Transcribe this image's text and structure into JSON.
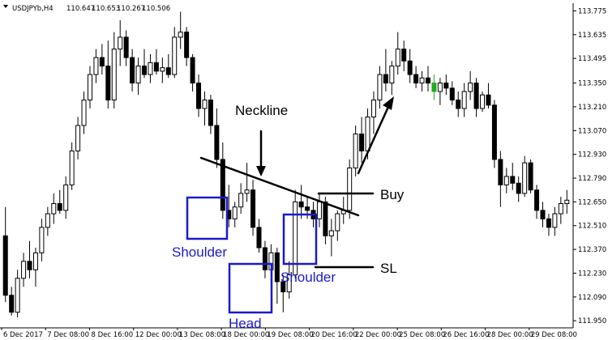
{
  "chart_data": {
    "type": "candlestick",
    "header": {
      "symbol": "USDJPYb,H4",
      "ohlc": [
        "110.647",
        "110.653",
        "110.267",
        "110.506"
      ]
    },
    "ylim": [
      111.908,
      113.82
    ],
    "y_ticks": [
      "113.775",
      "113.635",
      "113.495",
      "113.350",
      "113.210",
      "113.070",
      "112.930",
      "112.790",
      "112.650",
      "112.510",
      "112.370",
      "112.230",
      "112.090",
      "111.950"
    ],
    "x_ticks": [
      "6 Dec 2017",
      "7 Dec 08:00",
      "8 Dec 16:00",
      "12 Dec 00:00",
      "13 Dec 08:00",
      "18 Dec 00:00",
      "19 Dec 08:00",
      "20 Dec 16:00",
      "22 Dec 00:00",
      "25 Dec 08:00",
      "26 Dec 16:00",
      "28 Dec 00:00",
      "29 Dec 08:00"
    ],
    "colors": {
      "bull_body": "#ffffff",
      "bear_body": "#000000",
      "wick": "#000000",
      "highlight": "#22aa22",
      "pattern_box": "#1a1acc",
      "annotation": "#000000"
    },
    "candles": [
      {
        "o": 112.45,
        "h": 112.62,
        "l": 112.06,
        "c": 112.1
      },
      {
        "o": 112.1,
        "h": 112.15,
        "l": 111.98,
        "c": 112.0
      },
      {
        "o": 112.0,
        "h": 112.25,
        "l": 111.97,
        "c": 112.2
      },
      {
        "o": 112.2,
        "h": 112.35,
        "l": 112.15,
        "c": 112.3
      },
      {
        "o": 112.3,
        "h": 112.42,
        "l": 112.2,
        "c": 112.25
      },
      {
        "o": 112.25,
        "h": 112.38,
        "l": 112.15,
        "c": 112.35
      },
      {
        "o": 112.35,
        "h": 112.55,
        "l": 112.3,
        "c": 112.5
      },
      {
        "o": 112.5,
        "h": 112.62,
        "l": 112.45,
        "c": 112.58
      },
      {
        "o": 112.58,
        "h": 112.7,
        "l": 112.52,
        "c": 112.64
      },
      {
        "o": 112.64,
        "h": 112.72,
        "l": 112.58,
        "c": 112.6
      },
      {
        "o": 112.6,
        "h": 112.8,
        "l": 112.55,
        "c": 112.75
      },
      {
        "o": 112.75,
        "h": 113.0,
        "l": 112.72,
        "c": 112.95
      },
      {
        "o": 112.95,
        "h": 113.15,
        "l": 112.9,
        "c": 113.1
      },
      {
        "o": 113.1,
        "h": 113.3,
        "l": 113.05,
        "c": 113.25
      },
      {
        "o": 113.25,
        "h": 113.45,
        "l": 113.2,
        "c": 113.4
      },
      {
        "o": 113.4,
        "h": 113.55,
        "l": 113.35,
        "c": 113.5
      },
      {
        "o": 113.5,
        "h": 113.58,
        "l": 113.4,
        "c": 113.45
      },
      {
        "o": 113.45,
        "h": 113.6,
        "l": 113.2,
        "c": 113.25
      },
      {
        "o": 113.25,
        "h": 113.65,
        "l": 113.2,
        "c": 113.55
      },
      {
        "o": 113.55,
        "h": 113.72,
        "l": 113.45,
        "c": 113.62
      },
      {
        "o": 113.62,
        "h": 113.66,
        "l": 113.45,
        "c": 113.5
      },
      {
        "o": 113.5,
        "h": 113.55,
        "l": 113.3,
        "c": 113.35
      },
      {
        "o": 113.35,
        "h": 113.5,
        "l": 113.28,
        "c": 113.45
      },
      {
        "o": 113.45,
        "h": 113.55,
        "l": 113.38,
        "c": 113.4
      },
      {
        "o": 113.4,
        "h": 113.52,
        "l": 113.35,
        "c": 113.47
      },
      {
        "o": 113.47,
        "h": 113.55,
        "l": 113.4,
        "c": 113.42
      },
      {
        "o": 113.42,
        "h": 113.5,
        "l": 113.35,
        "c": 113.44
      },
      {
        "o": 113.44,
        "h": 113.52,
        "l": 113.38,
        "c": 113.4
      },
      {
        "o": 113.4,
        "h": 113.68,
        "l": 113.38,
        "c": 113.62
      },
      {
        "o": 113.62,
        "h": 113.77,
        "l": 113.55,
        "c": 113.65
      },
      {
        "o": 113.65,
        "h": 113.68,
        "l": 113.45,
        "c": 113.5
      },
      {
        "o": 113.5,
        "h": 113.52,
        "l": 113.3,
        "c": 113.35
      },
      {
        "o": 113.35,
        "h": 113.4,
        "l": 113.15,
        "c": 113.2
      },
      {
        "o": 113.2,
        "h": 113.3,
        "l": 113.1,
        "c": 113.25
      },
      {
        "o": 113.25,
        "h": 113.28,
        "l": 113.05,
        "c": 113.1
      },
      {
        "o": 113.1,
        "h": 113.2,
        "l": 112.85,
        "c": 112.9
      },
      {
        "o": 112.9,
        "h": 113.0,
        "l": 112.55,
        "c": 112.6
      },
      {
        "o": 112.6,
        "h": 112.75,
        "l": 112.5,
        "c": 112.55
      },
      {
        "o": 112.55,
        "h": 112.65,
        "l": 112.5,
        "c": 112.62
      },
      {
        "o": 112.62,
        "h": 112.76,
        "l": 112.58,
        "c": 112.7
      },
      {
        "o": 112.7,
        "h": 112.88,
        "l": 112.65,
        "c": 112.72
      },
      {
        "o": 112.72,
        "h": 112.78,
        "l": 112.45,
        "c": 112.5
      },
      {
        "o": 112.5,
        "h": 112.55,
        "l": 112.35,
        "c": 112.38
      },
      {
        "o": 112.38,
        "h": 112.42,
        "l": 112.2,
        "c": 112.25
      },
      {
        "o": 112.25,
        "h": 112.4,
        "l": 112.15,
        "c": 112.35
      },
      {
        "o": 112.35,
        "h": 112.38,
        "l": 112.05,
        "c": 112.18
      },
      {
        "o": 112.18,
        "h": 112.22,
        "l": 112.0,
        "c": 112.12
      },
      {
        "o": 112.12,
        "h": 112.3,
        "l": 112.08,
        "c": 112.22
      },
      {
        "o": 112.22,
        "h": 112.72,
        "l": 112.2,
        "c": 112.65
      },
      {
        "o": 112.65,
        "h": 112.75,
        "l": 112.55,
        "c": 112.62
      },
      {
        "o": 112.62,
        "h": 112.68,
        "l": 112.55,
        "c": 112.6
      },
      {
        "o": 112.6,
        "h": 112.65,
        "l": 112.5,
        "c": 112.55
      },
      {
        "o": 112.55,
        "h": 112.7,
        "l": 112.5,
        "c": 112.65
      },
      {
        "o": 112.65,
        "h": 112.68,
        "l": 112.4,
        "c": 112.45
      },
      {
        "o": 112.45,
        "h": 112.55,
        "l": 112.33,
        "c": 112.48
      },
      {
        "o": 112.48,
        "h": 112.6,
        "l": 112.42,
        "c": 112.58
      },
      {
        "o": 112.58,
        "h": 112.68,
        "l": 112.52,
        "c": 112.6
      },
      {
        "o": 112.6,
        "h": 112.9,
        "l": 112.55,
        "c": 112.85
      },
      {
        "o": 112.85,
        "h": 113.1,
        "l": 112.8,
        "c": 113.05
      },
      {
        "o": 113.05,
        "h": 113.15,
        "l": 112.88,
        "c": 112.95
      },
      {
        "o": 112.95,
        "h": 113.2,
        "l": 112.9,
        "c": 113.15
      },
      {
        "o": 113.15,
        "h": 113.3,
        "l": 113.05,
        "c": 113.25
      },
      {
        "o": 113.25,
        "h": 113.45,
        "l": 113.2,
        "c": 113.4
      },
      {
        "o": 113.4,
        "h": 113.55,
        "l": 113.3,
        "c": 113.35
      },
      {
        "o": 113.35,
        "h": 113.48,
        "l": 113.28,
        "c": 113.45
      },
      {
        "o": 113.45,
        "h": 113.65,
        "l": 113.4,
        "c": 113.55
      },
      {
        "o": 113.55,
        "h": 113.6,
        "l": 113.42,
        "c": 113.48
      },
      {
        "o": 113.48,
        "h": 113.55,
        "l": 113.35,
        "c": 113.4
      },
      {
        "o": 113.4,
        "h": 113.45,
        "l": 113.32,
        "c": 113.35
      },
      {
        "o": 113.35,
        "h": 113.42,
        "l": 113.3,
        "c": 113.38
      },
      {
        "o": 113.38,
        "h": 113.45,
        "l": 113.3,
        "c": 113.35
      },
      {
        "o": 113.35,
        "h": 113.4,
        "l": 113.25,
        "c": 113.3,
        "hl": true
      },
      {
        "o": 113.3,
        "h": 113.38,
        "l": 113.22,
        "c": 113.35
      },
      {
        "o": 113.35,
        "h": 113.4,
        "l": 113.28,
        "c": 113.32
      },
      {
        "o": 113.32,
        "h": 113.36,
        "l": 113.22,
        "c": 113.25
      },
      {
        "o": 113.25,
        "h": 113.3,
        "l": 113.15,
        "c": 113.2
      },
      {
        "o": 113.2,
        "h": 113.35,
        "l": 113.15,
        "c": 113.3
      },
      {
        "o": 113.3,
        "h": 113.42,
        "l": 113.25,
        "c": 113.35
      },
      {
        "o": 113.35,
        "h": 113.38,
        "l": 113.15,
        "c": 113.2
      },
      {
        "o": 113.2,
        "h": 113.3,
        "l": 113.18,
        "c": 113.28
      },
      {
        "o": 113.28,
        "h": 113.35,
        "l": 113.2,
        "c": 113.22
      },
      {
        "o": 113.22,
        "h": 113.25,
        "l": 112.85,
        "c": 112.9
      },
      {
        "o": 112.9,
        "h": 112.95,
        "l": 112.62,
        "c": 112.75
      },
      {
        "o": 112.75,
        "h": 112.85,
        "l": 112.7,
        "c": 112.8
      },
      {
        "o": 112.8,
        "h": 112.88,
        "l": 112.72,
        "c": 112.76
      },
      {
        "o": 112.76,
        "h": 112.8,
        "l": 112.65,
        "c": 112.7
      },
      {
        "o": 112.7,
        "h": 112.92,
        "l": 112.68,
        "c": 112.88
      },
      {
        "o": 112.88,
        "h": 112.9,
        "l": 112.7,
        "c": 112.72
      },
      {
        "o": 112.72,
        "h": 112.75,
        "l": 112.55,
        "c": 112.6
      },
      {
        "o": 112.6,
        "h": 112.65,
        "l": 112.5,
        "c": 112.55
      },
      {
        "o": 112.55,
        "h": 112.58,
        "l": 112.45,
        "c": 112.5
      },
      {
        "o": 112.5,
        "h": 112.62,
        "l": 112.45,
        "c": 112.58
      },
      {
        "o": 112.58,
        "h": 112.68,
        "l": 112.52,
        "c": 112.64
      },
      {
        "o": 112.64,
        "h": 112.72,
        "l": 112.58,
        "c": 112.66
      }
    ],
    "annotations": {
      "neckline": "Neckline",
      "buy": "Buy",
      "sl": "SL",
      "shoulder_left": "Shoulder",
      "head": "Head",
      "shoulder_right": "Shoulder"
    }
  }
}
